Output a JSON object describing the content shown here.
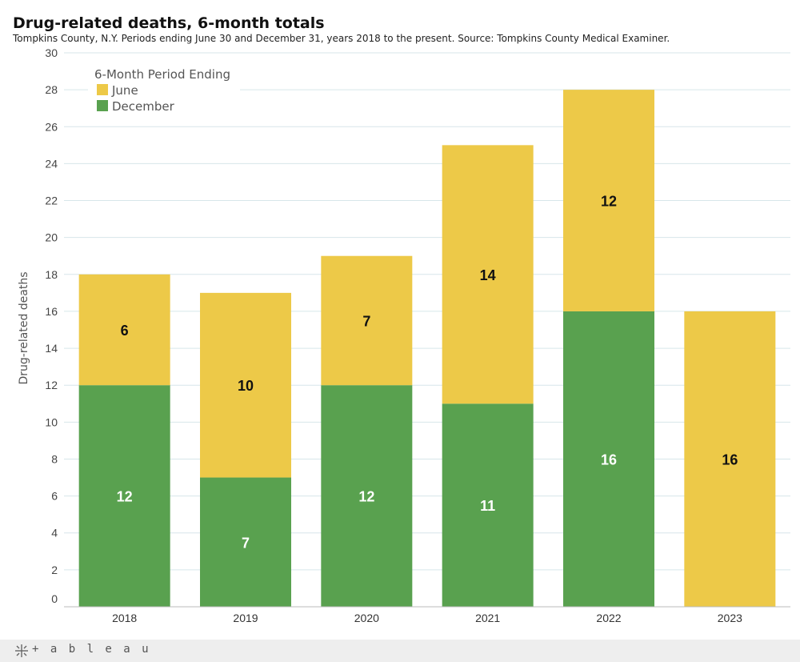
{
  "title": "Drug-related deaths, 6-month totals",
  "subtitle": "Tompkins County, N.Y. Periods ending June 30 and December 31, years 2018 to the present. Source: Tompkins County Medical Examiner.",
  "footer": {
    "brand": "+ a b l e a u"
  },
  "chart_data": {
    "type": "bar",
    "stacked": true,
    "title": "Drug-related deaths, 6-month totals",
    "xlabel": "",
    "ylabel": "Drug-related deaths",
    "ylim": [
      0,
      30
    ],
    "yticks": [
      0,
      2,
      4,
      6,
      8,
      10,
      12,
      14,
      16,
      18,
      20,
      22,
      24,
      26,
      28,
      30
    ],
    "categories": [
      "2018",
      "2019",
      "2020",
      "2021",
      "2022",
      "2023"
    ],
    "legend": {
      "title": "6-Month Period Ending",
      "position": "top-left"
    },
    "series": [
      {
        "name": "December",
        "color": "#59a14f",
        "label_color": "#ffffff",
        "values": [
          12,
          7,
          12,
          11,
          16,
          0
        ]
      },
      {
        "name": "June",
        "color": "#edc948",
        "label_color": "#111111",
        "values": [
          6,
          10,
          7,
          14,
          12,
          16
        ]
      }
    ]
  }
}
